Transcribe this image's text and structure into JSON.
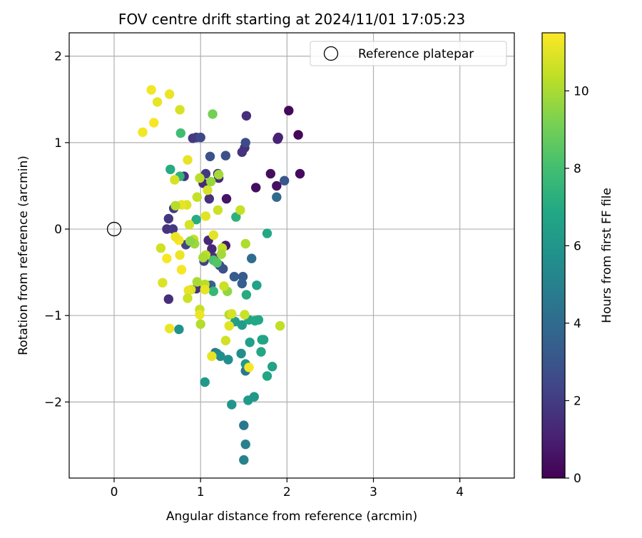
{
  "chart_data": {
    "type": "scatter",
    "title": "FOV centre drift starting at 2024/11/01 17:05:23",
    "xlabel": "Angular distance from reference (arcmin)",
    "ylabel": "Rotation from reference (arcmin)",
    "xlim": [
      -0.52,
      4.63
    ],
    "ylim": [
      -2.88,
      2.27
    ],
    "xticks": [
      0,
      1,
      2,
      3,
      4
    ],
    "xtick_labels": [
      "0",
      "1",
      "2",
      "3",
      "4"
    ],
    "yticks": [
      -2,
      -1,
      0,
      1,
      2
    ],
    "ytick_labels": [
      "−2",
      "−1",
      "0",
      "1",
      "2"
    ],
    "grid": true,
    "legend": {
      "location": "upper-right",
      "entries": [
        "Reference platepar"
      ]
    },
    "reference": {
      "name": "Reference platepar",
      "x": 0,
      "y": 0,
      "marker": "open-circle"
    },
    "colorbar": {
      "label": "Hours from first FF file",
      "min": 0,
      "max": 11.5,
      "ticks": [
        0,
        2,
        4,
        6,
        8,
        10
      ],
      "tick_labels": [
        "0",
        "2",
        "4",
        "6",
        "8",
        "10"
      ],
      "colormap": "viridis"
    },
    "series": [
      {
        "points": [
          [
            2.02,
            1.37,
            0.2
          ],
          [
            2.13,
            1.09,
            0.2
          ],
          [
            2.15,
            0.64,
            0.3
          ],
          [
            1.81,
            0.64,
            0.4
          ],
          [
            1.64,
            0.48,
            0.4
          ],
          [
            1.88,
            0.5,
            0.5
          ],
          [
            1.3,
            0.35,
            0.6
          ],
          [
            1.29,
            -0.19,
            0.8
          ],
          [
            1.9,
            1.06,
            1.1
          ],
          [
            1.89,
            1.04,
            1.1
          ],
          [
            1.53,
            1.31,
            1.5
          ],
          [
            1.51,
            0.94,
            1.6
          ],
          [
            1.48,
            0.89,
            1.7
          ],
          [
            1.2,
            0.64,
            1.5
          ],
          [
            1.21,
            0.59,
            1.4
          ],
          [
            1.03,
            0.53,
            1.4
          ],
          [
            1.06,
            0.64,
            1.9
          ],
          [
            1.1,
            0.35,
            1.6
          ],
          [
            0.91,
            1.05,
            1.9
          ],
          [
            0.95,
            1.06,
            2.0
          ],
          [
            0.81,
            0.61,
            1.6
          ],
          [
            0.69,
            0.24,
            2.0
          ],
          [
            0.63,
            0.12,
            1.8
          ],
          [
            0.61,
            0.0,
            1.7
          ],
          [
            0.68,
            0.0,
            1.9
          ],
          [
            0.63,
            -0.81,
            1.5
          ],
          [
            0.95,
            -0.69,
            1.6
          ],
          [
            1.09,
            -0.13,
            1.3
          ],
          [
            1.13,
            -0.23,
            1.3
          ],
          [
            1.15,
            -0.33,
            1.8
          ],
          [
            0.83,
            -0.18,
            2.3
          ],
          [
            1.04,
            -0.37,
            2.2
          ],
          [
            1.22,
            -0.42,
            2.6
          ],
          [
            1.26,
            -0.46,
            2.8
          ],
          [
            1.0,
            1.06,
            2.5
          ],
          [
            1.52,
            1.0,
            2.6
          ],
          [
            1.29,
            0.85,
            2.8
          ],
          [
            1.11,
            0.84,
            2.9
          ],
          [
            1.97,
            0.56,
            3.1
          ],
          [
            1.88,
            0.37,
            3.9
          ],
          [
            1.59,
            -0.34,
            4.1
          ],
          [
            1.39,
            -0.55,
            3.3
          ],
          [
            1.49,
            -0.55,
            3.3
          ],
          [
            1.48,
            -0.63,
            3.5
          ],
          [
            1.12,
            -0.65,
            3.7
          ],
          [
            1.07,
            -0.65,
            3.0
          ],
          [
            1.17,
            -1.43,
            4.1
          ],
          [
            1.52,
            -1.64,
            4.6
          ],
          [
            1.5,
            -2.27,
            4.6
          ],
          [
            1.52,
            -2.49,
            5.0
          ],
          [
            1.5,
            -2.67,
            5.1
          ],
          [
            1.36,
            -2.03,
            5.9
          ],
          [
            1.55,
            -1.98,
            6.2
          ],
          [
            1.62,
            -1.94,
            6.1
          ],
          [
            1.05,
            -1.77,
            6.1
          ],
          [
            0.75,
            -1.16,
            5.8
          ],
          [
            1.19,
            -1.44,
            5.3
          ],
          [
            1.23,
            -1.47,
            5.6
          ],
          [
            1.32,
            -1.51,
            5.7
          ],
          [
            1.47,
            -1.44,
            5.6
          ],
          [
            1.52,
            -1.56,
            6.2
          ],
          [
            1.57,
            -1.31,
            6.5
          ],
          [
            1.71,
            -1.28,
            6.8
          ],
          [
            1.73,
            -1.28,
            6.7
          ],
          [
            1.7,
            -1.42,
            6.8
          ],
          [
            1.77,
            -1.7,
            6.8
          ],
          [
            1.83,
            -1.59,
            6.6
          ],
          [
            1.4,
            -1.07,
            6.4
          ],
          [
            1.48,
            -1.11,
            6.3
          ],
          [
            1.56,
            -1.05,
            6.8
          ],
          [
            1.63,
            -1.06,
            6.9
          ],
          [
            1.67,
            -1.05,
            6.9
          ],
          [
            1.53,
            -0.76,
            7.0
          ],
          [
            1.65,
            -0.65,
            6.6
          ],
          [
            1.77,
            -0.05,
            6.9
          ],
          [
            1.41,
            0.14,
            7.3
          ],
          [
            0.95,
            0.11,
            7.1
          ],
          [
            0.65,
            0.69,
            7.0
          ],
          [
            0.76,
            0.61,
            7.4
          ],
          [
            0.77,
            1.11,
            7.9
          ],
          [
            1.14,
            1.33,
            9.1
          ],
          [
            1.15,
            -0.36,
            8.2
          ],
          [
            1.19,
            -0.39,
            8.4
          ],
          [
            1.15,
            -0.72,
            7.6
          ],
          [
            1.31,
            -0.72,
            9.6
          ],
          [
            1.52,
            -0.17,
            10.1
          ],
          [
            1.46,
            0.22,
            10.5
          ],
          [
            1.25,
            -0.22,
            10.4
          ],
          [
            1.2,
            0.22,
            10.6
          ],
          [
            1.08,
            0.45,
            10.8
          ],
          [
            1.06,
            0.15,
            11.0
          ],
          [
            0.96,
            0.37,
            10.5
          ],
          [
            0.84,
            0.28,
            10.9
          ],
          [
            0.87,
            0.05,
            10.8
          ],
          [
            0.78,
            0.28,
            11.1
          ],
          [
            0.71,
            0.27,
            10.2
          ],
          [
            0.92,
            -0.12,
            10.5
          ],
          [
            0.93,
            -0.17,
            9.8
          ],
          [
            0.88,
            -0.14,
            9.5
          ],
          [
            0.96,
            -0.61,
            10.0
          ],
          [
            0.89,
            -0.7,
            10.8
          ],
          [
            0.86,
            -0.71,
            11.1
          ],
          [
            0.85,
            -0.8,
            10.6
          ],
          [
            0.99,
            -0.93,
            10.5
          ],
          [
            0.99,
            -0.99,
            11.2
          ],
          [
            1.0,
            -1.1,
            10.2
          ],
          [
            1.05,
            -0.64,
            10.3
          ],
          [
            1.05,
            -0.7,
            11.1
          ],
          [
            1.06,
            -0.3,
            10.4
          ],
          [
            1.03,
            -0.33,
            10.0
          ],
          [
            1.24,
            -0.29,
            9.9
          ],
          [
            1.27,
            -0.66,
            10.6
          ],
          [
            1.33,
            -0.99,
            10.2
          ],
          [
            1.36,
            -0.98,
            10.8
          ],
          [
            1.33,
            -1.12,
            11.0
          ],
          [
            1.29,
            -1.29,
            10.7
          ],
          [
            1.13,
            -1.47,
            11.1
          ],
          [
            1.51,
            -0.99,
            10.6
          ],
          [
            1.56,
            -1.6,
            11.4
          ],
          [
            1.92,
            -1.12,
            10.4
          ],
          [
            0.75,
            -0.13,
            11.4
          ],
          [
            0.71,
            -0.09,
            11.2
          ],
          [
            0.76,
            -0.3,
            11.2
          ],
          [
            0.78,
            -0.47,
            11.4
          ],
          [
            0.61,
            -0.34,
            11.4
          ],
          [
            0.54,
            -0.22,
            10.7
          ],
          [
            0.56,
            -0.62,
            10.9
          ],
          [
            0.64,
            -1.15,
            11.2
          ],
          [
            0.7,
            0.57,
            10.8
          ],
          [
            0.85,
            0.8,
            11.1
          ],
          [
            0.76,
            1.38,
            10.8
          ],
          [
            0.64,
            1.56,
            11.2
          ],
          [
            0.5,
            1.47,
            11.1
          ],
          [
            0.43,
            1.61,
            11.3
          ],
          [
            0.46,
            1.23,
            11.4
          ],
          [
            0.33,
            1.12,
            11.3
          ],
          [
            0.99,
            0.59,
            10.3
          ],
          [
            1.12,
            0.55,
            9.7
          ],
          [
            1.21,
            0.63,
            9.9
          ],
          [
            1.15,
            -0.07,
            11.0
          ]
        ]
      }
    ]
  }
}
